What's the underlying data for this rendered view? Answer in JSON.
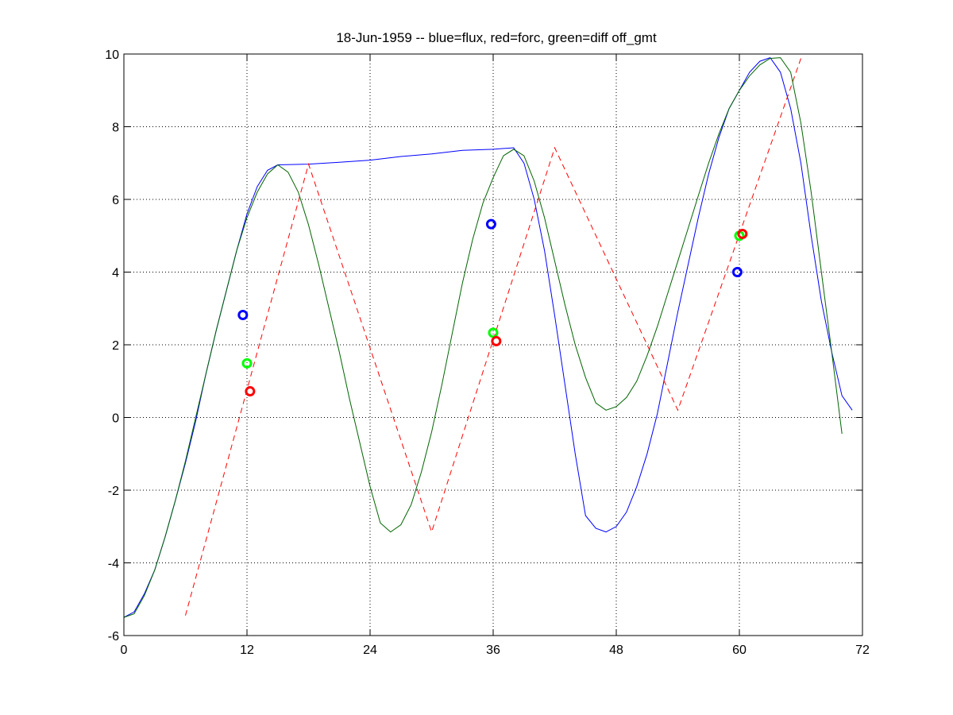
{
  "chart_data": {
    "type": "line",
    "title": "18-Jun-1959 -- blue=flux, red=forc, green=diff off_gmt",
    "xlabel": "",
    "ylabel": "",
    "xlim": [
      0,
      72
    ],
    "ylim": [
      -6,
      10
    ],
    "x_ticks": [
      0,
      12,
      24,
      36,
      48,
      60,
      72
    ],
    "y_ticks": [
      -6,
      -4,
      -2,
      0,
      2,
      4,
      6,
      8,
      10
    ],
    "grid": true,
    "series": [
      {
        "color": "#0000ff",
        "style": "solid",
        "points": [
          [
            0,
            -5.5
          ],
          [
            1,
            -5.35
          ],
          [
            2,
            -4.85
          ],
          [
            3,
            -4.2
          ],
          [
            4,
            -3.3
          ],
          [
            5,
            -2.3
          ],
          [
            6,
            -1.25
          ],
          [
            7,
            -0.1
          ],
          [
            8,
            1.2
          ],
          [
            9,
            2.4
          ],
          [
            10,
            3.5
          ],
          [
            11,
            4.6
          ],
          [
            12,
            5.6
          ],
          [
            13,
            6.35
          ],
          [
            14,
            6.8
          ],
          [
            15,
            6.95
          ],
          [
            18,
            6.97
          ],
          [
            21,
            7.02
          ],
          [
            24,
            7.08
          ],
          [
            27,
            7.18
          ],
          [
            30,
            7.25
          ],
          [
            33,
            7.35
          ],
          [
            36,
            7.38
          ],
          [
            38,
            7.42
          ],
          [
            39,
            7.0
          ],
          [
            40,
            6.0
          ],
          [
            41,
            4.6
          ],
          [
            42,
            2.8
          ],
          [
            43,
            0.9
          ],
          [
            44,
            -1.0
          ],
          [
            45,
            -2.7
          ],
          [
            46,
            -3.05
          ],
          [
            47,
            -3.15
          ],
          [
            48,
            -3.0
          ],
          [
            49,
            -2.6
          ],
          [
            50,
            -1.9
          ],
          [
            51,
            -1.0
          ],
          [
            52,
            0.1
          ],
          [
            53,
            1.5
          ],
          [
            54,
            2.9
          ],
          [
            55,
            4.2
          ],
          [
            56,
            5.5
          ],
          [
            57,
            6.7
          ],
          [
            58,
            7.7
          ],
          [
            59,
            8.5
          ],
          [
            60,
            9.0
          ],
          [
            61,
            9.5
          ],
          [
            62,
            9.8
          ],
          [
            63,
            9.9
          ],
          [
            64,
            9.5
          ],
          [
            65,
            8.5
          ],
          [
            66,
            7.0
          ],
          [
            67,
            5.0
          ],
          [
            68,
            3.2
          ],
          [
            69,
            1.8
          ],
          [
            70,
            0.6
          ],
          [
            71,
            0.2
          ]
        ]
      },
      {
        "color": "#ff0000",
        "style": "dashed",
        "points": [
          [
            6,
            -5.45
          ],
          [
            18,
            6.97
          ],
          [
            30,
            -3.15
          ],
          [
            42,
            7.42
          ],
          [
            54,
            0.2
          ],
          [
            66,
            9.88
          ]
        ]
      },
      {
        "color": "#006400",
        "style": "solid",
        "points": [
          [
            0,
            -5.5
          ],
          [
            1,
            -5.4
          ],
          [
            2,
            -4.9
          ],
          [
            3,
            -4.2
          ],
          [
            4,
            -3.3
          ],
          [
            5,
            -2.3
          ],
          [
            6,
            -1.2
          ],
          [
            7,
            0.0
          ],
          [
            8,
            1.2
          ],
          [
            9,
            2.4
          ],
          [
            10,
            3.5
          ],
          [
            11,
            4.6
          ],
          [
            12,
            5.5
          ],
          [
            13,
            6.2
          ],
          [
            14,
            6.7
          ],
          [
            15,
            6.95
          ],
          [
            16,
            6.75
          ],
          [
            17,
            6.2
          ],
          [
            18,
            5.3
          ],
          [
            19,
            4.2
          ],
          [
            20,
            3.0
          ],
          [
            21,
            1.8
          ],
          [
            22,
            0.5
          ],
          [
            23,
            -0.7
          ],
          [
            24,
            -1.9
          ],
          [
            25,
            -2.9
          ],
          [
            26,
            -3.15
          ],
          [
            27,
            -2.95
          ],
          [
            28,
            -2.4
          ],
          [
            29,
            -1.5
          ],
          [
            30,
            -0.4
          ],
          [
            31,
            0.9
          ],
          [
            32,
            2.3
          ],
          [
            33,
            3.7
          ],
          [
            34,
            4.9
          ],
          [
            35,
            5.9
          ],
          [
            36,
            6.6
          ],
          [
            37,
            7.2
          ],
          [
            38,
            7.38
          ],
          [
            39,
            7.2
          ],
          [
            40,
            6.5
          ],
          [
            41,
            5.5
          ],
          [
            42,
            4.3
          ],
          [
            43,
            3.1
          ],
          [
            44,
            2.0
          ],
          [
            45,
            1.1
          ],
          [
            46,
            0.4
          ],
          [
            47,
            0.2
          ],
          [
            48,
            0.3
          ],
          [
            49,
            0.55
          ],
          [
            50,
            1.0
          ],
          [
            51,
            1.7
          ],
          [
            52,
            2.5
          ],
          [
            53,
            3.4
          ],
          [
            54,
            4.3
          ],
          [
            55,
            5.2
          ],
          [
            56,
            6.1
          ],
          [
            57,
            7.0
          ],
          [
            58,
            7.8
          ],
          [
            59,
            8.5
          ],
          [
            60,
            9.0
          ],
          [
            61,
            9.4
          ],
          [
            62,
            9.7
          ],
          [
            63,
            9.88
          ],
          [
            64,
            9.9
          ],
          [
            65,
            9.5
          ],
          [
            66,
            8.1
          ],
          [
            67,
            6.2
          ],
          [
            68,
            4.0
          ],
          [
            69,
            1.8
          ],
          [
            70,
            -0.45
          ]
        ]
      }
    ],
    "markers": [
      {
        "color": "#0000ff",
        "x": 11.6,
        "y": 2.82
      },
      {
        "color": "#00ff00",
        "x": 12.0,
        "y": 1.49
      },
      {
        "color": "#ff0000",
        "x": 12.3,
        "y": 0.72
      },
      {
        "color": "#0000ff",
        "x": 35.8,
        "y": 5.32
      },
      {
        "color": "#00ff00",
        "x": 36.0,
        "y": 2.33
      },
      {
        "color": "#ff0000",
        "x": 36.3,
        "y": 2.1
      },
      {
        "color": "#0000ff",
        "x": 59.8,
        "y": 4.0
      },
      {
        "color": "#00ff00",
        "x": 60.0,
        "y": 5.0
      },
      {
        "color": "#ff0000",
        "x": 60.3,
        "y": 5.05
      }
    ]
  }
}
